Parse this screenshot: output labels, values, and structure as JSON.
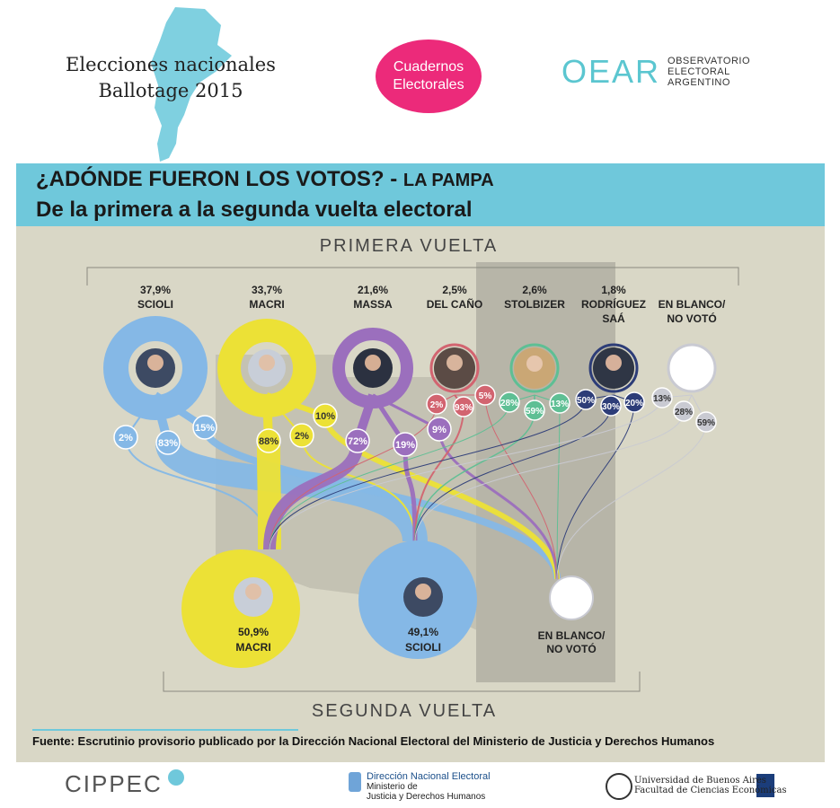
{
  "header": {
    "title_line1": "Elecciones nacionales",
    "title_line2": "Ballotage 2015",
    "badge_line1": "Cuadernos",
    "badge_line2": "Electorales",
    "oear_wordmark": "OEAR",
    "oear_line1": "OBSERVATORIO",
    "oear_line2": "ELECTORAL",
    "oear_line3": "ARGENTINO"
  },
  "banner": {
    "title": "¿ADÓNDE FUERON LOS VOTOS? -",
    "region": "LA PAMPA",
    "subtitle": "De la primera a la segunda vuelta electoral"
  },
  "diagram": {
    "first_round_label": "PRIMERA VUELTA",
    "second_round_label": "SEGUNDA VUELTA",
    "first_round": [
      {
        "id": "scioli",
        "pct": "37,9%",
        "name_line1": "SCIOLI",
        "name_line2": "",
        "color": "#85b8e6",
        "flows": [
          "2%",
          "83%",
          "15%"
        ]
      },
      {
        "id": "macri",
        "pct": "33,7%",
        "name_line1": "MACRI",
        "name_line2": "",
        "color": "#ece136",
        "flows": [
          "88%",
          "2%",
          "10%"
        ]
      },
      {
        "id": "massa",
        "pct": "21,6%",
        "name_line1": "MASSA",
        "name_line2": "",
        "color": "#9b6fbd",
        "flows": [
          "72%",
          "19%",
          "9%"
        ]
      },
      {
        "id": "delcano",
        "pct": "2,5%",
        "name_line1": "DEL CAÑO",
        "name_line2": "",
        "color": "#d26470",
        "flows": [
          "2%",
          "93%",
          "5%"
        ]
      },
      {
        "id": "stolbizer",
        "pct": "2,6%",
        "name_line1": "STOLBIZER",
        "name_line2": "",
        "color": "#5ebf94",
        "flows": [
          "28%",
          "59%",
          "13%"
        ]
      },
      {
        "id": "rodriguezsaa",
        "pct": "1,8%",
        "name_line1": "RODRÍGUEZ",
        "name_line2": "SAÁ",
        "color": "#2d3d78",
        "flows": [
          "50%",
          "30%",
          "20%"
        ]
      },
      {
        "id": "blanco",
        "pct": "",
        "name_line1": "EN BLANCO/",
        "name_line2": "NO VOTÓ",
        "color": "#c9cad2",
        "flows": [
          "13%",
          "28%",
          "59%"
        ]
      }
    ],
    "second_round": [
      {
        "id": "macri2",
        "pct": "50,9%",
        "name": "MACRI"
      },
      {
        "id": "scioli2",
        "pct": "49,1%",
        "name": "SCIOLI"
      },
      {
        "id": "blanco2",
        "name_line1": "EN BLANCO/",
        "name_line2": "NO VOTÓ"
      }
    ]
  },
  "source": "Fuente: Escrutinio provisorio publicado por la Dirección Nacional Electoral del Ministerio de Justicia y Derechos Humanos",
  "footer": {
    "cippec": "CIPPEC",
    "dne_title": "Dirección Nacional Electoral",
    "dne_line1": "Ministerio de",
    "dne_line2": "Justicia y Derechos Humanos",
    "uba_line1": "Universidad de Buenos Aires",
    "uba_line2": "Facultad de Ciencias Económicas"
  }
}
